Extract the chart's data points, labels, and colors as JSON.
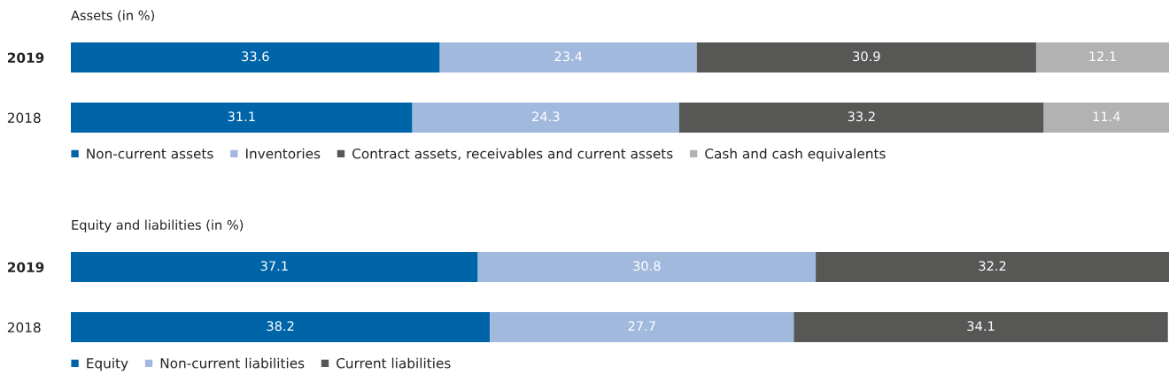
{
  "chart_data": [
    {
      "type": "bar",
      "orientation": "horizontal",
      "stacked": true,
      "title": "Assets (in %)",
      "categories": [
        "2019",
        "2018"
      ],
      "data_labels": true,
      "legend": "bottom",
      "grid": false,
      "series": [
        {
          "name": "Non-current assets",
          "color": "#0065a8",
          "values": [
            33.6,
            31.1
          ]
        },
        {
          "name": "Inventories",
          "color": "#a2b9de",
          "values": [
            23.4,
            24.3
          ]
        },
        {
          "name": "Contract assets, receivables and current assets",
          "color": "#575756",
          "values": [
            30.9,
            33.2
          ]
        },
        {
          "name": "Cash and cash equivalents",
          "color": "#b2b2b2",
          "values": [
            12.1,
            11.4
          ]
        }
      ]
    },
    {
      "type": "bar",
      "orientation": "horizontal",
      "stacked": true,
      "title": "Equity and liabilities (in %)",
      "categories": [
        "2019",
        "2018"
      ],
      "data_labels": true,
      "legend": "bottom",
      "grid": false,
      "series": [
        {
          "name": "Equity",
          "color": "#0065a8",
          "values": [
            37.1,
            38.2
          ]
        },
        {
          "name": "Non-current liabilities",
          "color": "#a2b9de",
          "values": [
            30.8,
            27.7
          ]
        },
        {
          "name": "Current liabilities",
          "color": "#575756",
          "values": [
            32.2,
            34.1
          ]
        }
      ]
    }
  ]
}
